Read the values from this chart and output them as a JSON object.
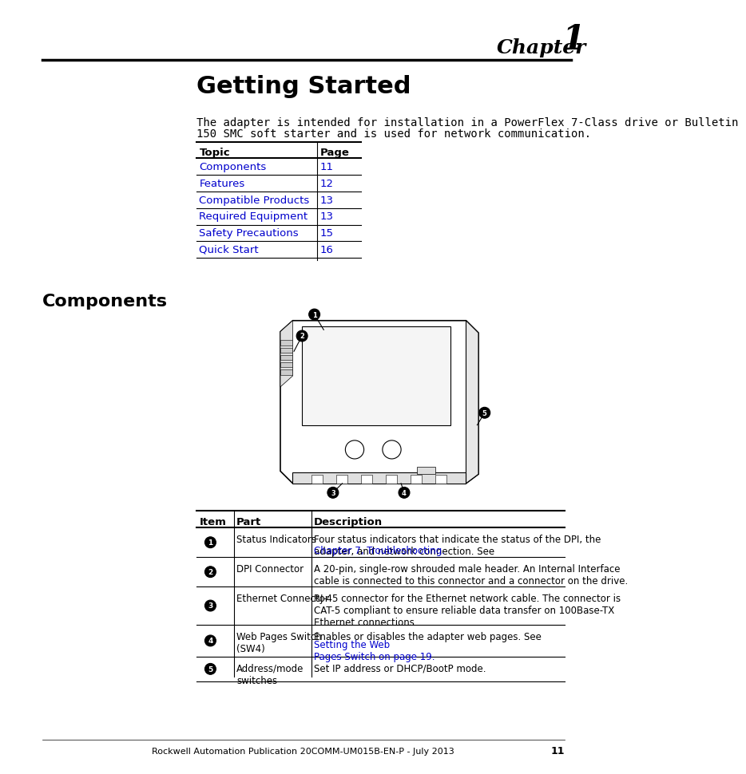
{
  "bg_color": "#ffffff",
  "chapter_label": "Chapter",
  "chapter_number": "1",
  "chapter_label_fontsize": 18,
  "chapter_number_fontsize": 30,
  "title": "Getting Started",
  "title_fontsize": 22,
  "intro_text_line1": "The adapter is intended for installation in a PowerFlex 7-Class drive or Bulletin",
  "intro_text_line2": "150 SMC soft starter and is used for network communication.",
  "intro_fontsize": 10,
  "toc_header": [
    "Topic",
    "Page"
  ],
  "toc_rows": [
    [
      "Components",
      "11"
    ],
    [
      "Features",
      "12"
    ],
    [
      "Compatible Products",
      "13"
    ],
    [
      "Required Equipment",
      "13"
    ],
    [
      "Safety Precautions",
      "15"
    ],
    [
      "Quick Start",
      "16"
    ]
  ],
  "section_title": "Components",
  "section_title_fontsize": 16,
  "table_header": [
    "Item",
    "Part",
    "Description"
  ],
  "table_rows": [
    [
      "1",
      "Status Indicators",
      "Four status indicators that indicate the status of the DPI, the\nadapter, and network connection. See ",
      "Chapter 7, Troubleshooting.",
      ""
    ],
    [
      "2",
      "DPI Connector",
      "A 20-pin, single-row shrouded male header. An Internal Interface\ncable is connected to this connector and a connector on the drive.",
      "",
      ""
    ],
    [
      "3",
      "Ethernet Connector",
      "RJ-45 connector for the Ethernet network cable. The connector is\nCAT-5 compliant to ensure reliable data transfer on 100Base-TX\nEthernet connections.",
      "",
      ""
    ],
    [
      "4",
      "Web Pages Switch\n(SW4)",
      "Enables or disables the adapter web pages. See ",
      "Setting the Web\nPages Switch on page 19.",
      ""
    ],
    [
      "5",
      "Address/mode\nswitches",
      "Set IP address or DHCP/BootP mode.",
      "",
      ""
    ]
  ],
  "footer_text": "Rockwell Automation Publication 20COMM-UM015B-EN-P - July 2013",
  "footer_page": "11",
  "link_color": "#0000cc",
  "text_color": "#000000",
  "table_fontsize": 9,
  "body_fontsize": 10
}
